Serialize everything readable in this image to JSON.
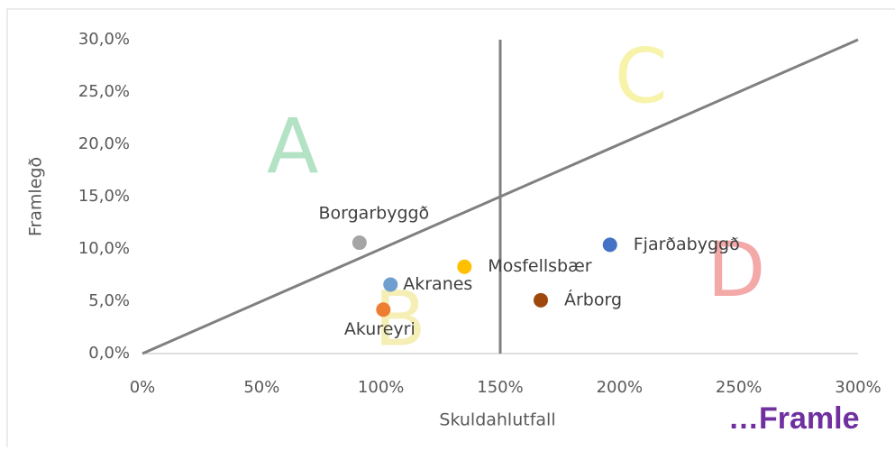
{
  "chart_data": {
    "type": "scatter",
    "x_label": "Skuldahlutfall",
    "y_label": "Framlegð",
    "series": [
      {
        "name": "Borgarbyggð",
        "color": "#a5a5a5",
        "x": [
          91
        ],
        "values": [
          10.6
        ]
      },
      {
        "name": "Akranes",
        "color": "#6f9fcf",
        "x": [
          104
        ],
        "values": [
          6.6
        ]
      },
      {
        "name": "Akureyri",
        "color": "#ed7d31",
        "x": [
          101
        ],
        "values": [
          4.2
        ]
      },
      {
        "name": "Mosfellsbær",
        "color": "#ffc000",
        "x": [
          135
        ],
        "values": [
          8.3
        ]
      },
      {
        "name": "Fjarðabyggð",
        "color": "#4472c4",
        "x": [
          196
        ],
        "values": [
          10.4
        ]
      },
      {
        "name": "Árborg",
        "color": "#9e480e",
        "x": [
          167
        ],
        "values": [
          5.1
        ]
      }
    ],
    "xlim": [
      0,
      300
    ],
    "xticks": [
      {
        "value": 0,
        "label": "0%"
      },
      {
        "value": 50,
        "label": "50%"
      },
      {
        "value": 100,
        "label": "100%"
      },
      {
        "value": 150,
        "label": "150%"
      },
      {
        "value": 200,
        "label": "200%"
      },
      {
        "value": 250,
        "label": "250%"
      },
      {
        "value": 300,
        "label": "300%"
      }
    ],
    "ylim": [
      0,
      30
    ],
    "yticks": [
      {
        "value": 0,
        "label": "0,0%"
      },
      {
        "value": 5,
        "label": "5,0%"
      },
      {
        "value": 10,
        "label": "10,0%"
      },
      {
        "value": 15,
        "label": "15,0%"
      },
      {
        "value": 20,
        "label": "20,0%"
      },
      {
        "value": 25,
        "label": "25,0%"
      },
      {
        "value": 30,
        "label": "30,0%"
      }
    ],
    "reference_lines": [
      {
        "x": [
          150,
          150
        ],
        "y": [
          0,
          30
        ]
      },
      {
        "x": [
          0,
          300
        ],
        "y": [
          0,
          30
        ]
      }
    ],
    "annotations": [
      {
        "text": "A",
        "x": 63,
        "y": 19.3,
        "color": "#b3e2c5"
      },
      {
        "text": "B",
        "x": 108,
        "y": 2.8,
        "color": "#f5eeb5"
      },
      {
        "text": "C",
        "x": 209,
        "y": 26,
        "color": "#f7f3aa"
      },
      {
        "text": "D",
        "x": 249,
        "y": 7.5,
        "color": "#f4a9a9"
      }
    ]
  },
  "footer": "…Framle"
}
